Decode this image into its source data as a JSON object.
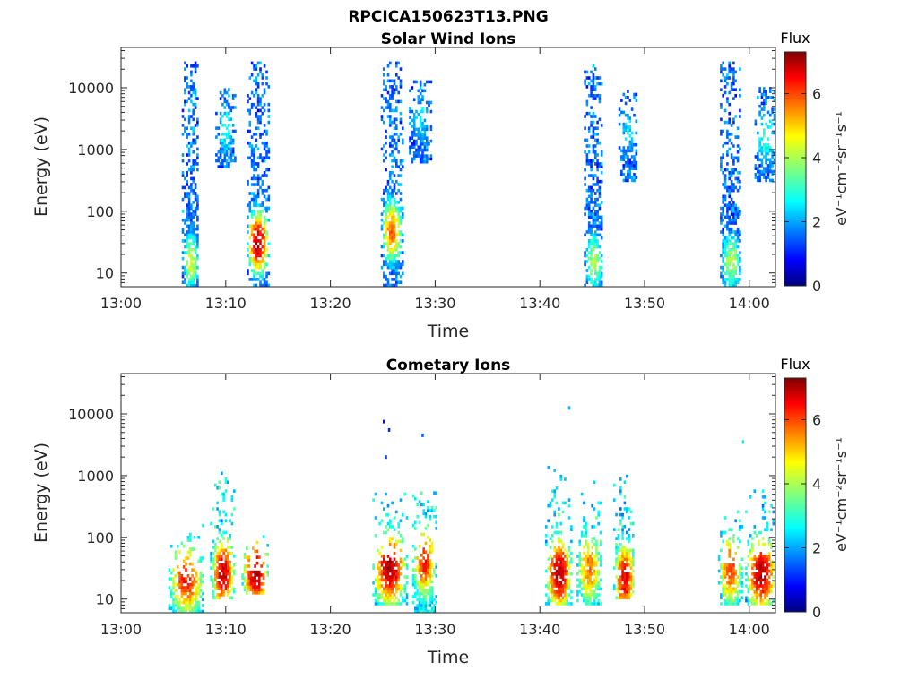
{
  "figure": {
    "title": "RPCICA150623T13.PNG"
  },
  "chart_data": [
    {
      "type": "heatmap",
      "title": "Solar Wind Ions",
      "xlabel": "Time",
      "ylabel": "Energy (eV)",
      "x_ticks": [
        "13:00",
        "13:10",
        "13:20",
        "13:30",
        "13:40",
        "13:50",
        "14:00"
      ],
      "x_tick_minutes": [
        0,
        10,
        20,
        30,
        40,
        50,
        60
      ],
      "xlim_minutes": [
        0,
        62.5
      ],
      "y_scale": "log",
      "ylim": [
        6,
        45000
      ],
      "y_ticks": [
        "10",
        "100",
        "1000",
        "10000"
      ],
      "y_tick_values": [
        10,
        100,
        1000,
        10000
      ],
      "colorbar": {
        "label": "Flux",
        "unit_label": "eV⁻¹cm⁻²sr⁻¹s⁻¹",
        "range": [
          0,
          7.3
        ],
        "ticks": [
          "0",
          "2",
          "4",
          "6"
        ],
        "tick_values": [
          0,
          2,
          4,
          6
        ],
        "colormap": "jet"
      },
      "bursts": [
        {
          "start_min": 5.8,
          "end_min": 7.4,
          "e_min": 6,
          "e_max": 25000,
          "peak_flux": 4.2,
          "peak_energy": 15
        },
        {
          "start_min": 9.0,
          "end_min": 10.8,
          "e_min": 500,
          "e_max": 9000,
          "peak_flux": 3.0,
          "peak_energy": 2000
        },
        {
          "start_min": 12.0,
          "end_min": 14.0,
          "e_min": 6,
          "e_max": 24000,
          "peak_flux": 7.0,
          "peak_energy": 30
        },
        {
          "start_min": 24.8,
          "end_min": 26.8,
          "e_min": 6,
          "e_max": 25000,
          "peak_flux": 5.6,
          "peak_energy": 45
        },
        {
          "start_min": 27.5,
          "end_min": 29.5,
          "e_min": 600,
          "e_max": 12000,
          "peak_flux": 2.6,
          "peak_energy": 3000
        },
        {
          "start_min": 44.2,
          "end_min": 46.0,
          "e_min": 6,
          "e_max": 23000,
          "peak_flux": 4.0,
          "peak_energy": 15
        },
        {
          "start_min": 47.5,
          "end_min": 49.2,
          "e_min": 300,
          "e_max": 9000,
          "peak_flux": 2.6,
          "peak_energy": 2000
        },
        {
          "start_min": 57.2,
          "end_min": 59.2,
          "e_min": 6,
          "e_max": 26000,
          "peak_flux": 4.0,
          "peak_energy": 15
        },
        {
          "start_min": 60.5,
          "end_min": 62.5,
          "e_min": 300,
          "e_max": 10000,
          "peak_flux": 3.2,
          "peak_energy": 1500
        }
      ]
    },
    {
      "type": "heatmap",
      "title": "Cometary Ions",
      "xlabel": "Time",
      "ylabel": "Energy (eV)",
      "x_ticks": [
        "13:00",
        "13:10",
        "13:20",
        "13:30",
        "13:40",
        "13:50",
        "14:00"
      ],
      "x_tick_minutes": [
        0,
        10,
        20,
        30,
        40,
        50,
        60
      ],
      "xlim_minutes": [
        0,
        62.5
      ],
      "y_scale": "log",
      "ylim": [
        6,
        45000
      ],
      "y_ticks": [
        "10",
        "100",
        "1000",
        "10000"
      ],
      "y_tick_values": [
        10,
        100,
        1000,
        10000
      ],
      "colorbar": {
        "label": "Flux",
        "unit_label": "eV⁻¹cm⁻²sr⁻¹s⁻¹",
        "range": [
          0,
          7.3
        ],
        "ticks": [
          "0",
          "2",
          "4",
          "6"
        ],
        "tick_values": [
          0,
          2,
          4,
          6
        ],
        "colormap": "jet"
      },
      "bursts": [
        {
          "start_min": 4.5,
          "end_min": 7.8,
          "e_min": 6,
          "e_max": 150,
          "peak_flux": 6.2,
          "peak_energy": 20
        },
        {
          "start_min": 8.5,
          "end_min": 10.8,
          "e_min": 10,
          "e_max": 1200,
          "peak_flux": 6.8,
          "peak_energy": 25
        },
        {
          "start_min": 11.5,
          "end_min": 14.0,
          "e_min": 12,
          "e_max": 100,
          "peak_flux": 7.0,
          "peak_energy": 25
        },
        {
          "start_min": 24.0,
          "end_min": 27.2,
          "e_min": 8,
          "e_max": 500,
          "peak_flux": 7.0,
          "peak_energy": 30
        },
        {
          "start_min": 27.8,
          "end_min": 30.0,
          "e_min": 6,
          "e_max": 1000,
          "peak_flux": 6.2,
          "peak_energy": 40
        },
        {
          "start_min": 40.5,
          "end_min": 43.0,
          "e_min": 8,
          "e_max": 1300,
          "peak_flux": 7.0,
          "peak_energy": 25
        },
        {
          "start_min": 43.5,
          "end_min": 45.8,
          "e_min": 8,
          "e_max": 800,
          "peak_flux": 5.6,
          "peak_energy": 30
        },
        {
          "start_min": 47.0,
          "end_min": 49.0,
          "e_min": 10,
          "e_max": 1000,
          "peak_flux": 6.6,
          "peak_energy": 20
        },
        {
          "start_min": 57.0,
          "end_min": 59.3,
          "e_min": 8,
          "e_max": 300,
          "peak_flux": 6.0,
          "peak_energy": 30
        },
        {
          "start_min": 59.6,
          "end_min": 62.5,
          "e_min": 8,
          "e_max": 800,
          "peak_flux": 7.0,
          "peak_energy": 25
        }
      ],
      "isolated_points": [
        {
          "minute": 25.0,
          "energy": 7500,
          "flux": 1.0
        },
        {
          "minute": 25.5,
          "energy": 5500,
          "flux": 1.2
        },
        {
          "minute": 28.7,
          "energy": 4500,
          "flux": 1.6
        },
        {
          "minute": 42.7,
          "energy": 12500,
          "flux": 2.2
        },
        {
          "minute": 59.3,
          "energy": 3500,
          "flux": 2.6
        },
        {
          "minute": 25.2,
          "energy": 2000,
          "flux": 1.4
        }
      ]
    }
  ]
}
